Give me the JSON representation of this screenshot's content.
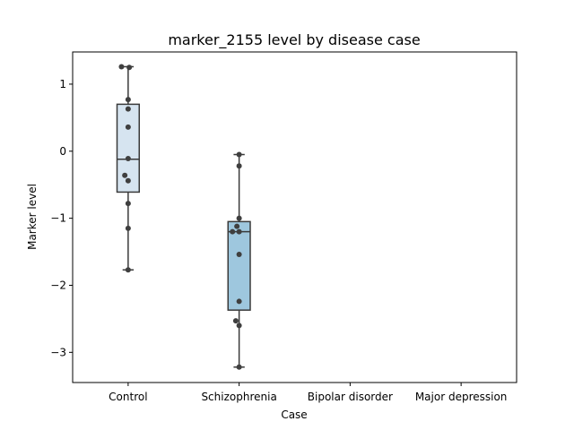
{
  "chart_data": {
    "type": "box",
    "title": "marker_2155 level by disease case",
    "xlabel": "Case",
    "ylabel": "Marker level",
    "categories": [
      "Control",
      "Schizophrenia",
      "Bipolar disorder",
      "Major depression"
    ],
    "ylim": [
      -3.45,
      1.48
    ],
    "yticks": [
      1,
      0,
      -1,
      -2,
      -3
    ],
    "ytick_labels": [
      "1",
      "0",
      "−1",
      "−2",
      "−3"
    ],
    "grid": false,
    "legend": "none",
    "boxes": [
      {
        "category": "Control",
        "fill": "#d6e4f0",
        "whisker_low": -1.77,
        "q1": -0.61,
        "median": -0.12,
        "q3": 0.7,
        "whisker_high": 1.26,
        "points": [
          1.26,
          1.25,
          0.77,
          0.63,
          0.36,
          -0.11,
          -0.36,
          -0.44,
          -0.78,
          -1.15,
          -1.77
        ],
        "jitter": [
          -0.06,
          0.01,
          0.0,
          0.0,
          0.0,
          0.0,
          -0.03,
          0.0,
          0.0,
          0.0,
          0.0
        ]
      },
      {
        "category": "Schizophrenia",
        "fill": "#9ec7de",
        "whisker_low": -3.22,
        "q1": -2.37,
        "median": -1.2,
        "q3": -1.05,
        "whisker_high": -0.05,
        "points": [
          -0.05,
          -0.22,
          -1.0,
          -1.12,
          -1.2,
          -1.2,
          -1.54,
          -2.24,
          -2.53,
          -2.6,
          -3.22
        ],
        "jitter": [
          0.0,
          0.0,
          0.0,
          -0.02,
          -0.06,
          0.0,
          0.0,
          0.0,
          -0.03,
          0.0,
          0.0
        ]
      }
    ],
    "colors": {
      "box_edge": "#3a3a3a",
      "point": "#3f3f3f"
    }
  }
}
